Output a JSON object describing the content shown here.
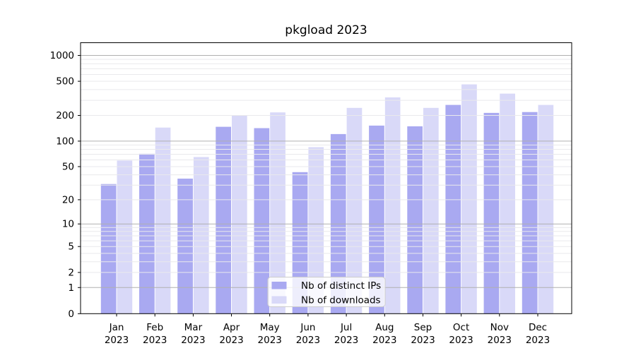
{
  "chart_data": {
    "type": "bar",
    "title": "pkgload 2023",
    "categories": [
      "Jan",
      "Feb",
      "Mar",
      "Apr",
      "May",
      "Jun",
      "Jul",
      "Aug",
      "Sep",
      "Oct",
      "Nov",
      "Dec"
    ],
    "xtick_year_line": "2023",
    "series": [
      {
        "name": "Nb of distinct IPs",
        "color": "#a9a9f1",
        "values": [
          31,
          71,
          36,
          147,
          142,
          43,
          121,
          152,
          149,
          265,
          214,
          219
        ]
      },
      {
        "name": "Nb of downloads",
        "color": "#d9d9f8",
        "values": [
          59,
          144,
          65,
          198,
          217,
          85,
          245,
          325,
          245,
          460,
          359,
          265
        ]
      }
    ],
    "yscale": "log1p",
    "ylim": [
      0,
      1200
    ],
    "yticks": [
      0,
      1,
      2,
      5,
      10,
      20,
      50,
      100,
      200,
      500,
      1000
    ],
    "yticklabels": [
      "0",
      "1",
      "2",
      "5",
      "10",
      "20",
      "50",
      "100",
      "200",
      "500",
      "1000"
    ],
    "major_gridlines": [
      1,
      10,
      100,
      1000
    ],
    "minor_gridlines": [
      2,
      3,
      4,
      5,
      6,
      7,
      8,
      9,
      20,
      30,
      40,
      50,
      60,
      70,
      80,
      90,
      200,
      300,
      400,
      500,
      600,
      700,
      800,
      900
    ],
    "grid": true,
    "legend": {
      "position": "lower center",
      "entries": [
        {
          "label": "Nb of distinct IPs",
          "color": "#a9a9f1"
        },
        {
          "label": "Nb of downloads",
          "color": "#d9d9f8"
        }
      ]
    }
  },
  "colors": {
    "background": "#ffffff",
    "major_grid": "#b0b0b0",
    "minor_grid": "#e9e9ec",
    "spine": "#000000",
    "text": "#000000",
    "legend_border": "#cccccc",
    "legend_bg": "rgba(255,255,255,0.8)"
  }
}
